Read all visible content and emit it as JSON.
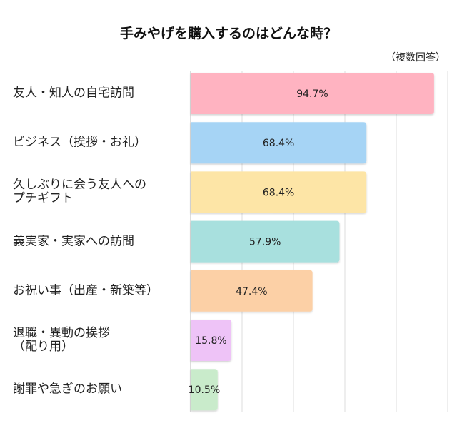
{
  "chart_data": {
    "type": "bar",
    "orientation": "horizontal",
    "title": "手みやげを購入するのはどんな時？",
    "subtitle": "（複数回答）",
    "categories": [
      "友人・知人の自宅訪問",
      "ビジネス（挨拶・お礼）",
      "久しぶりに会う友人への\nプチギフト",
      "義実家・実家への訪問",
      "お祝い事（出産・新築等）",
      "退職・異動の挨拶\n（配り用）",
      "謝罪や急ぎのお願い"
    ],
    "values": [
      94.7,
      68.4,
      68.4,
      57.9,
      47.4,
      15.8,
      10.5
    ],
    "value_labels": [
      "94.7%",
      "68.4%",
      "68.4%",
      "57.9%",
      "47.4%",
      "15.8%",
      "10.5%"
    ],
    "colors": [
      "#ffb3c1",
      "#a6d4f5",
      "#fde5a6",
      "#a8e0de",
      "#fcd0a6",
      "#eec3f7",
      "#c9ebcb"
    ],
    "xlim": [
      0,
      100
    ],
    "xticks": [
      0,
      20,
      40,
      60,
      80,
      100
    ],
    "grid": true
  }
}
